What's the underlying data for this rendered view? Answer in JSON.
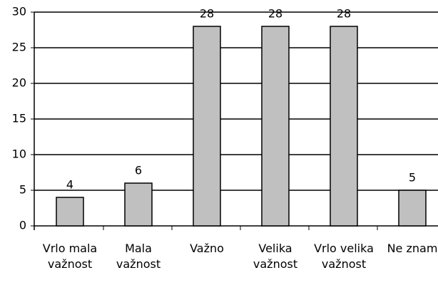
{
  "chart_data": {
    "type": "bar",
    "categories": [
      "Vrlo mala važnost",
      "Mala važnost",
      "Važno",
      "Velika važnost",
      "Vrlo velika važnost",
      "Ne znam"
    ],
    "values": [
      4,
      6,
      28,
      28,
      28,
      5
    ],
    "color": "#c0c0c0",
    "ylim": [
      0,
      30
    ],
    "yticks": [
      0,
      5,
      10,
      15,
      20,
      25,
      30
    ],
    "grid": true
  }
}
